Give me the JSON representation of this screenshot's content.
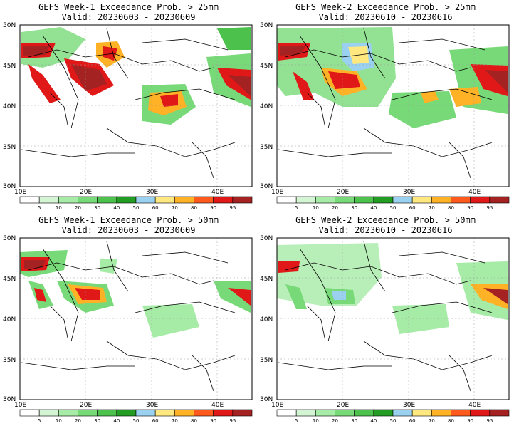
{
  "colorbar": {
    "colors": [
      "#ffffff",
      "#d4f5d4",
      "#a6eba6",
      "#78d978",
      "#4cc24c",
      "#239c23",
      "#9ad0f0",
      "#ffe880",
      "#ffb226",
      "#ff5a1e",
      "#e01818",
      "#a52222"
    ],
    "labels": [
      "5",
      "10",
      "20",
      "30",
      "40",
      "50",
      "60",
      "70",
      "80",
      "90",
      "95"
    ]
  },
  "axes": {
    "lon_labels": [
      "10E",
      "20E",
      "30E",
      "40E"
    ],
    "lat_labels": [
      "30N",
      "35N",
      "40N",
      "45N",
      "50N"
    ]
  },
  "panels": [
    {
      "title_line1": "GEFS Week-1 Exceedance Prob. > 25mm",
      "title_line2": "Valid: 20230603 - 20230609"
    },
    {
      "title_line1": "GEFS Week-2 Exceedance Prob. > 25mm",
      "title_line2": "Valid: 20230610 - 20230616"
    },
    {
      "title_line1": "GEFS Week-1 Exceedance Prob. > 50mm",
      "title_line2": "Valid: 20230603 - 20230609"
    },
    {
      "title_line1": "GEFS Week-2 Exceedance Prob. > 50mm",
      "title_line2": "Valid: 20230610 - 20230616"
    }
  ]
}
